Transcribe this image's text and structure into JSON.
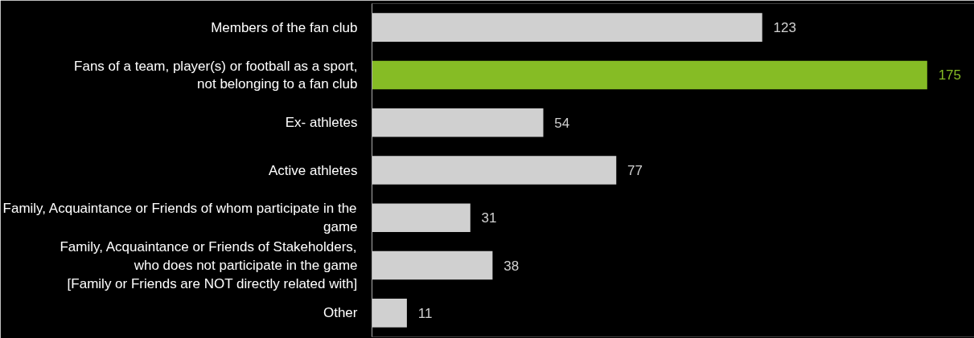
{
  "chart_data": {
    "type": "bar",
    "orientation": "horizontal",
    "tick_labels": "y",
    "grid": false,
    "data_labels": true,
    "categories": [
      "Members of the fan club",
      "Fans of a team, player(s) or football as a sport,\nnot belonging to a fan club",
      "Ex- athletes",
      "Active athletes",
      "Family, Acquaintance or Friends of whom participate in the\ngame",
      "Family, Acquaintance or Friends of Stakeholders,\nwho does not participate in the game\n[Family or Friends are NOT directly related with]",
      "Other"
    ],
    "values": [
      123,
      175,
      54,
      77,
      31,
      38,
      11
    ],
    "colors": [
      "#d0d0d0",
      "#86bc25",
      "#d0d0d0",
      "#d0d0d0",
      "#d0d0d0",
      "#d0d0d0",
      "#d0d0d0"
    ]
  }
}
